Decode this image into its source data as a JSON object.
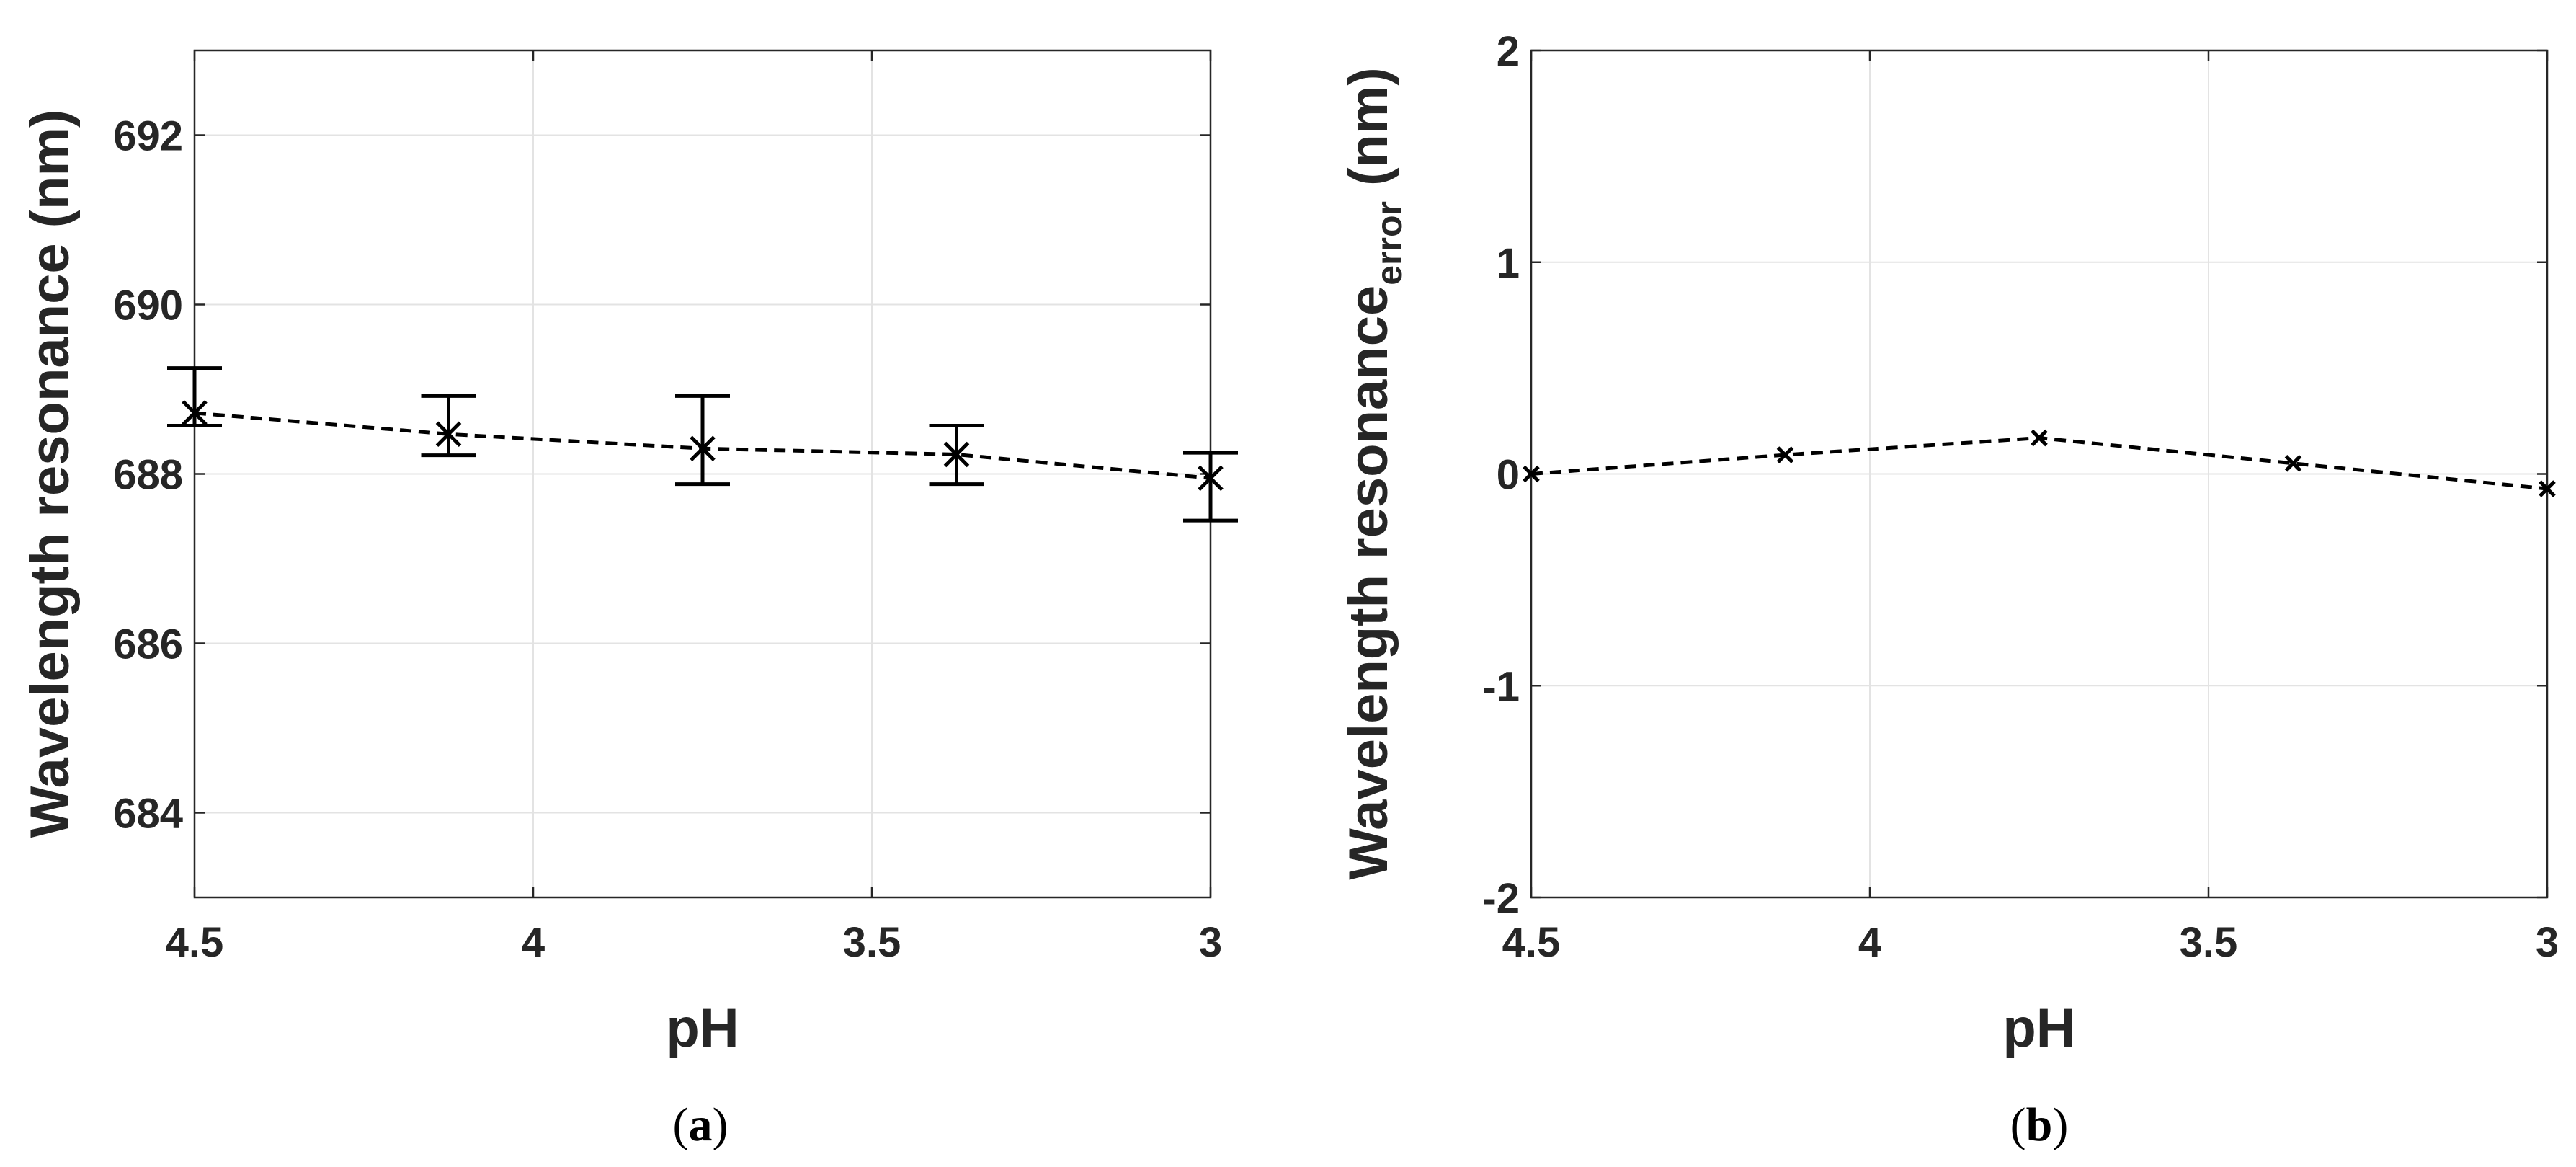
{
  "chart_data": [
    {
      "type": "line",
      "panel_caption": {
        "open": "(",
        "letter": "a",
        "close": ")"
      },
      "xlabel": "pH",
      "ylabel": "Wavelength resonance (nm)",
      "ylabel_subscript": "",
      "xlim": [
        4.5,
        3
      ],
      "x_reversed": true,
      "ylim": [
        683,
        693
      ],
      "xticks": [
        4.5,
        4,
        3.5,
        3
      ],
      "xtick_labels": [
        "4.5",
        "4",
        "3.5",
        "3"
      ],
      "yticks": [
        684,
        686,
        688,
        690,
        692
      ],
      "ytick_labels": [
        "684",
        "686",
        "688",
        "690",
        "692"
      ],
      "grid": true,
      "series": [
        {
          "marker": "x",
          "line_style": "dashed",
          "color": "#000000",
          "x": [
            4.5,
            4.125,
            3.75,
            3.375,
            3.0
          ],
          "y": [
            688.72,
            688.47,
            688.3,
            688.23,
            687.95
          ],
          "error_low": [
            688.57,
            688.22,
            687.88,
            687.88,
            687.45
          ],
          "error_high": [
            689.25,
            688.92,
            688.92,
            688.57,
            688.25
          ]
        }
      ]
    },
    {
      "type": "line",
      "panel_caption": {
        "open": "(",
        "letter": "b",
        "close": ")"
      },
      "xlabel": "pH",
      "ylabel": "Wavelength resonance",
      "ylabel_subscript": "error",
      "ylabel_unit": " (nm)",
      "xlim": [
        4.5,
        3
      ],
      "x_reversed": true,
      "ylim": [
        -2,
        2
      ],
      "xticks": [
        4.5,
        4,
        3.5,
        3
      ],
      "xtick_labels": [
        "4.5",
        "4",
        "3.5",
        "3"
      ],
      "yticks": [
        -2,
        -1,
        0,
        1,
        2
      ],
      "ytick_labels": [
        "-2",
        "-1",
        "0",
        "1",
        "2"
      ],
      "grid": true,
      "series": [
        {
          "marker": "x",
          "line_style": "dashed",
          "color": "#000000",
          "x": [
            4.5,
            4.125,
            3.75,
            3.375,
            3.0
          ],
          "y": [
            0.0,
            0.09,
            0.17,
            0.05,
            -0.07
          ]
        }
      ]
    }
  ]
}
